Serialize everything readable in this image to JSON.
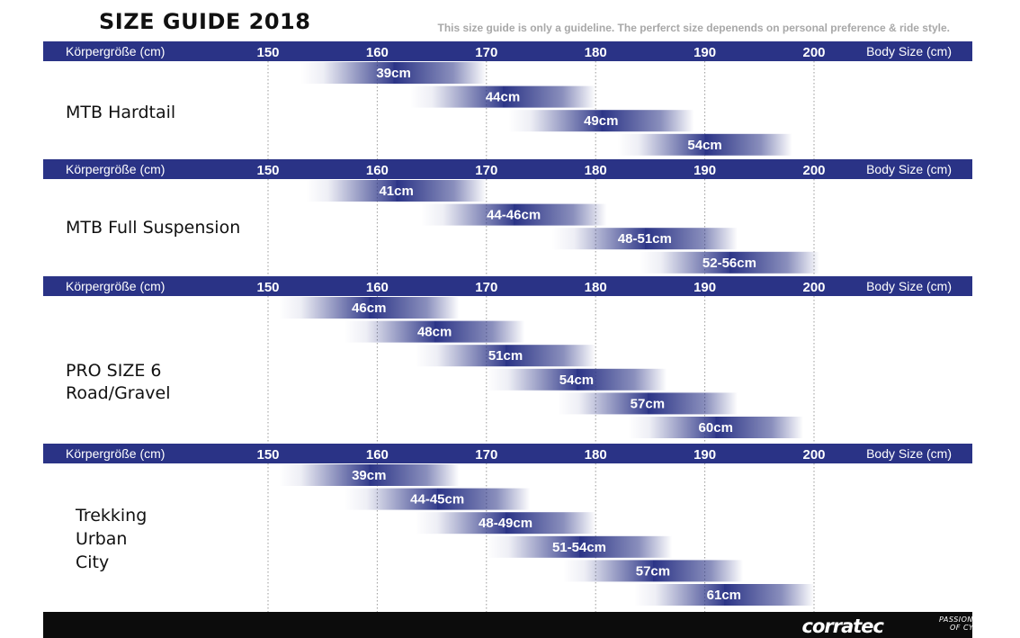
{
  "header": {
    "title": "SIZE GUIDE 2018",
    "subtitle": "This size guide is only a guideline. The perferct size depenends on personal preference & ride style."
  },
  "chart_data": {
    "type": "bar",
    "axis": {
      "left_label": "Körpergröße (cm)",
      "right_label": "Body Size (cm)",
      "ticks": [
        "150",
        "160",
        "170",
        "180",
        "190",
        "200"
      ],
      "range": [
        150,
        200
      ],
      "grid": true
    },
    "colors": {
      "band": "#2a3386",
      "bar_start": "#2a3386",
      "bar_end": "#ffffff"
    },
    "sections": [
      {
        "name_lines": [
          "MTB Hardtail"
        ],
        "bars": [
          {
            "label": "39cm",
            "from": 153,
            "to": 170
          },
          {
            "label": "44cm",
            "from": 163,
            "to": 180
          },
          {
            "label": "49cm",
            "from": 172,
            "to": 189
          },
          {
            "label": "54cm",
            "from": 182,
            "to": 198
          }
        ]
      },
      {
        "name_lines": [
          "MTB Full Suspension"
        ],
        "bars": [
          {
            "label": "41cm",
            "from": 153.5,
            "to": 170
          },
          {
            "label": "44-46cm",
            "from": 164,
            "to": 181
          },
          {
            "label": "48-51cm",
            "from": 176,
            "to": 193
          },
          {
            "label": "52-56cm",
            "from": 184,
            "to": 200.5
          }
        ]
      },
      {
        "name_lines": [
          "PRO SIZE 6",
          "Road/Gravel"
        ],
        "bars": [
          {
            "label": "46cm",
            "from": 151,
            "to": 167.5
          },
          {
            "label": "48cm",
            "from": 157,
            "to": 173.5
          },
          {
            "label": "51cm",
            "from": 163.5,
            "to": 180
          },
          {
            "label": "54cm",
            "from": 170,
            "to": 186.5
          },
          {
            "label": "57cm",
            "from": 176.5,
            "to": 193
          },
          {
            "label": "60cm",
            "from": 183,
            "to": 199
          }
        ]
      },
      {
        "name_lines": [
          "Trekking",
          "Urban",
          "City"
        ],
        "bars": [
          {
            "label": "39cm",
            "from": 151,
            "to": 167.5
          },
          {
            "label": "44-45cm",
            "from": 157,
            "to": 174
          },
          {
            "label": "48-49cm",
            "from": 163.5,
            "to": 180
          },
          {
            "label": "51-54cm",
            "from": 170,
            "to": 187
          },
          {
            "label": "57cm",
            "from": 177,
            "to": 193.5
          },
          {
            "label": "61cm",
            "from": 183.5,
            "to": 200
          }
        ]
      }
    ]
  },
  "footer": {
    "brand": "corratec",
    "tagline_1": "PASSION",
    "tagline_2": "OF CYCLING"
  }
}
